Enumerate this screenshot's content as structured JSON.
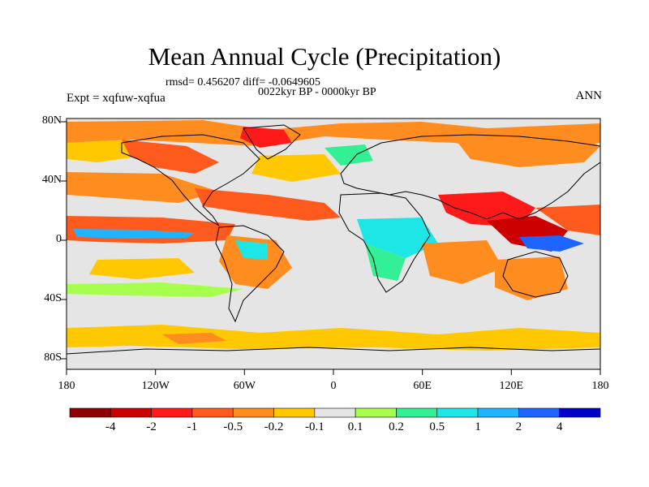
{
  "title": "Mean Annual Cycle (Precipitation)",
  "stats_line": "rmsd= 0.456207 diff= -0.0649605",
  "period_line": "0022kyr BP - 0000kyr BP",
  "experiment_label": "Expt = xqfuw-xqfua",
  "season_label": "ANN",
  "lat_labels": [
    "80N",
    "40N",
    "0",
    "40S",
    "80S"
  ],
  "lon_labels": [
    "180",
    "120W",
    "60W",
    "0",
    "60E",
    "120E",
    "180"
  ],
  "colorbar": {
    "colors": [
      "#8b0000",
      "#cd0000",
      "#ff1a1a",
      "#ff5a1e",
      "#ff8c1e",
      "#ffc800",
      "#e5e5e5",
      "#a6ff4d",
      "#33f094",
      "#1ee6e6",
      "#1eb4ff",
      "#1e64ff",
      "#0000c8"
    ],
    "labels": [
      "-4",
      "-2",
      "-1",
      "-0.5",
      "-0.2",
      "-0.1",
      "0.1",
      "0.2",
      "0.5",
      "1",
      "2",
      "4"
    ]
  }
}
